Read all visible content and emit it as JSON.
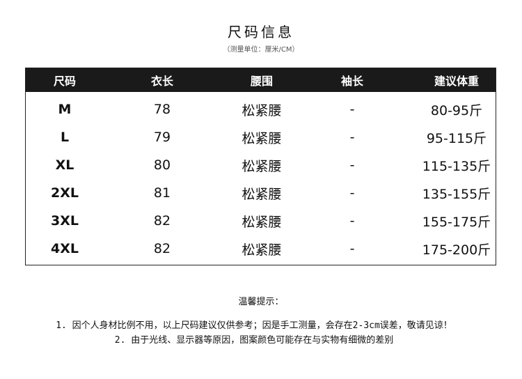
{
  "title": "尺码信息",
  "subtitle": "（测量单位：厘米/CM）",
  "table": {
    "headers": [
      "尺码",
      "衣长",
      "腰围",
      "袖长",
      "建议体重"
    ],
    "rows": [
      [
        "M",
        "78",
        "松紧腰",
        "-",
        "80-95斤"
      ],
      [
        "L",
        "79",
        "松紧腰",
        "-",
        "95-115斤"
      ],
      [
        "XL",
        "80",
        "松紧腰",
        "-",
        "115-135斤"
      ],
      [
        "2XL",
        "81",
        "松紧腰",
        "-",
        "135-155斤"
      ],
      [
        "3XL",
        "82",
        "松紧腰",
        "-",
        "155-175斤"
      ],
      [
        "4XL",
        "82",
        "松紧腰",
        "-",
        "175-200斤"
      ]
    ]
  },
  "tips": {
    "title": "温馨提示：",
    "items": [
      "1. 因个人身材比例不用，以上尺码建议仅供参考；因是手工测量，会存在2-3cm误差，敬请见谅！",
      "2. 由于光线、显示器等原因，图案颜色可能存在与实物有细微的差别"
    ]
  }
}
